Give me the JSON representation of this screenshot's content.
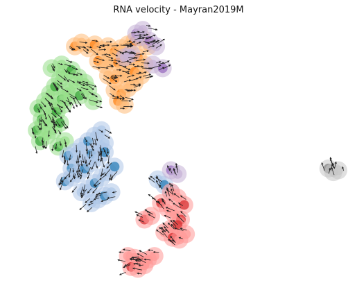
{
  "chart_data": {
    "type": "scatter",
    "title": "RNA velocity - Mayran2019M",
    "xlabel": "",
    "ylabel": "",
    "axes_visible": false,
    "grid": false,
    "legend": "none",
    "overlay": "velocity-arrows",
    "series": [
      {
        "color": "#2ca02c",
        "light": "#98df8a",
        "x": [
          -8.6,
          -8.2,
          -7.9,
          -7.6,
          -7.3,
          -7.0,
          -8.4,
          -8.0,
          -7.6,
          -7.2,
          -6.9,
          -6.5,
          -8.7,
          -8.3,
          -7.9,
          -7.5,
          -7.1,
          -6.8,
          -8.5,
          -8.1,
          -7.7,
          -7.3,
          -7.8,
          -7.2,
          -6.6,
          -6.2,
          -5.8,
          -6.1,
          -5.6,
          -5.3,
          -7.4,
          -7.0
        ],
        "y": [
          4.2,
          4.6,
          5.0,
          5.4,
          5.8,
          6.1,
          3.6,
          3.9,
          4.3,
          4.7,
          5.1,
          5.5,
          3.0,
          3.3,
          3.6,
          4.0,
          4.4,
          4.8,
          2.4,
          2.7,
          3.0,
          3.4,
          6.4,
          6.6,
          6.3,
          5.9,
          5.6,
          4.9,
          5.2,
          4.6,
          2.1,
          2.4
        ]
      },
      {
        "color": "#ff7f0e",
        "light": "#ffbb78",
        "x": [
          -6.4,
          -6.0,
          -5.6,
          -5.2,
          -4.8,
          -4.4,
          -4.0,
          -3.6,
          -3.2,
          -2.8,
          -2.4,
          -2.0,
          -5.0,
          -4.6,
          -4.2,
          -3.8,
          -3.4,
          -3.0,
          -2.6,
          -2.2,
          -4.4,
          -4.0,
          -3.6,
          -3.2,
          -2.8,
          -2.4,
          -4.0,
          -3.6,
          -3.2,
          -2.8,
          -3.8,
          -3.4
        ],
        "y": [
          7.6,
          7.8,
          7.5,
          7.7,
          7.4,
          7.6,
          7.3,
          7.5,
          7.7,
          7.9,
          8.1,
          7.6,
          6.8,
          6.6,
          6.9,
          6.7,
          6.5,
          6.8,
          7.0,
          6.6,
          6.0,
          5.8,
          6.1,
          5.9,
          6.2,
          6.0,
          5.2,
          5.0,
          5.3,
          5.6,
          4.6,
          4.4
        ]
      },
      {
        "color": "#1f77b4",
        "light": "#aec7e8",
        "x": [
          -6.8,
          -6.4,
          -6.0,
          -5.6,
          -5.2,
          -4.8,
          -6.6,
          -6.2,
          -5.8,
          -5.4,
          -5.0,
          -4.6,
          -7.0,
          -6.6,
          -6.2,
          -5.8,
          -5.4,
          -5.0,
          -4.6,
          -6.0,
          -5.6,
          -5.2,
          -4.8,
          -4.4,
          -4.0,
          -5.4,
          -5.0,
          -4.6,
          -4.2,
          -1.4,
          -1.0,
          -0.6
        ],
        "y": [
          1.6,
          1.8,
          2.1,
          2.4,
          2.7,
          3.0,
          0.9,
          1.1,
          1.4,
          1.7,
          2.0,
          2.3,
          0.2,
          0.4,
          0.6,
          0.9,
          1.2,
          1.5,
          1.8,
          -0.4,
          -0.2,
          0.1,
          0.4,
          0.7,
          1.0,
          -1.0,
          -0.8,
          -0.6,
          -0.4,
          0.3,
          0.0,
          -0.4
        ]
      },
      {
        "color": "#d62728",
        "light": "#ff9896",
        "x": [
          -1.2,
          -0.8,
          -0.4,
          0.0,
          -0.6,
          -0.2,
          0.2,
          -1.0,
          -0.6,
          -0.2,
          -3.2,
          -2.8,
          -2.4,
          -2.0,
          -1.6,
          -3.0,
          -2.6,
          -2.2,
          -0.5,
          -0.1,
          0.3,
          -2.2,
          -1.8
        ],
        "y": [
          -1.0,
          -1.3,
          -1.6,
          -1.9,
          -0.4,
          -0.7,
          -1.1,
          -2.6,
          -2.4,
          -2.2,
          -3.9,
          -4.0,
          -4.2,
          -4.1,
          -3.9,
          -4.5,
          -4.6,
          -4.4,
          -2.9,
          -3.0,
          -2.7,
          -1.9,
          -1.7
        ]
      },
      {
        "color": "#9467bd",
        "light": "#c5b0d5",
        "x": [
          -2.7,
          -2.3,
          -2.5,
          -1.9,
          -1.5,
          -1.7,
          -1.1,
          -3.4,
          -3.0,
          -0.6,
          -0.2
        ],
        "y": [
          8.3,
          8.5,
          8.1,
          7.9,
          7.6,
          6.6,
          6.4,
          7.0,
          7.2,
          0.8,
          0.6
        ]
      },
      {
        "color": "#7f7f7f",
        "light": "#c7c7c7",
        "x": [
          8.9,
          9.2,
          9.5
        ],
        "y": [
          0.9,
          0.7,
          0.8
        ]
      }
    ],
    "xlim": [
      -10,
      10
    ],
    "ylim": [
      -5,
      9
    ]
  }
}
